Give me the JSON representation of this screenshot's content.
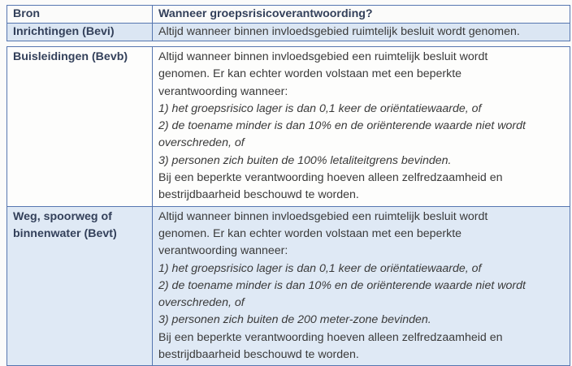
{
  "table1": {
    "header": {
      "bron": "Bron",
      "wanneer": "Wanneer groepsrisicoverantwoording?"
    },
    "row": {
      "bron": "Inrichtingen (Bevi)",
      "wanneer": "Altijd wanneer binnen invloedsgebied ruimtelijk besluit wordt genomen."
    }
  },
  "table2": {
    "rows": [
      {
        "bron_lines": [
          "Buisleidingen (Bevb)"
        ],
        "lines": [
          {
            "text": "Altijd wanneer binnen invloedsgebied een ruimtelijk besluit wordt",
            "italic": false
          },
          {
            "text": "genomen. Er kan echter worden volstaan met een beperkte",
            "italic": false
          },
          {
            "text": "verantwoording wanneer:",
            "italic": false
          },
          {
            "text": "1) het groepsrisico lager is dan 0,1 keer de oriëntatiewaarde, of",
            "italic": true
          },
          {
            "text": "2) de toename minder is dan 10% en de oriënterende waarde niet wordt",
            "italic": true
          },
          {
            "text": "overschreden, of",
            "italic": true
          },
          {
            "text": "3) personen zich buiten de 100% letaliteitgrens bevinden.",
            "italic": true
          },
          {
            "text": "Bij een beperkte verantwoording hoeven alleen zelfredzaamheid en",
            "italic": false
          },
          {
            "text": "bestrijdbaarheid beschouwd te worden.",
            "italic": false
          }
        ]
      },
      {
        "bron_lines": [
          "Weg, spoorweg of",
          "binnenwater (Bevt)"
        ],
        "lines": [
          {
            "text": "Altijd wanneer binnen invloedsgebied een ruimtelijk besluit wordt",
            "italic": false
          },
          {
            "text": "genomen. Er kan echter worden volstaan met een beperkte",
            "italic": false
          },
          {
            "text": "verantwoording wanneer:",
            "italic": false
          },
          {
            "text": "1) het groepsrisico lager is dan 0,1 keer de oriëntatiewaarde, of",
            "italic": true
          },
          {
            "text": "2) de toename minder is dan 10%  en de oriënterende waarde niet wordt",
            "italic": true
          },
          {
            "text": "overschreden, of",
            "italic": true
          },
          {
            "text": "3) personen zich buiten de 200 meter-zone bevinden.",
            "italic": true
          },
          {
            "text": "Bij een beperkte verantwoording hoeven alleen zelfredzaamheid en",
            "italic": false
          },
          {
            "text": "bestrijdbaarheid beschouwd te worden.",
            "italic": false
          }
        ]
      }
    ]
  },
  "colors": {
    "border": "#5676b0",
    "row_highlight": "#dbe6f3"
  }
}
